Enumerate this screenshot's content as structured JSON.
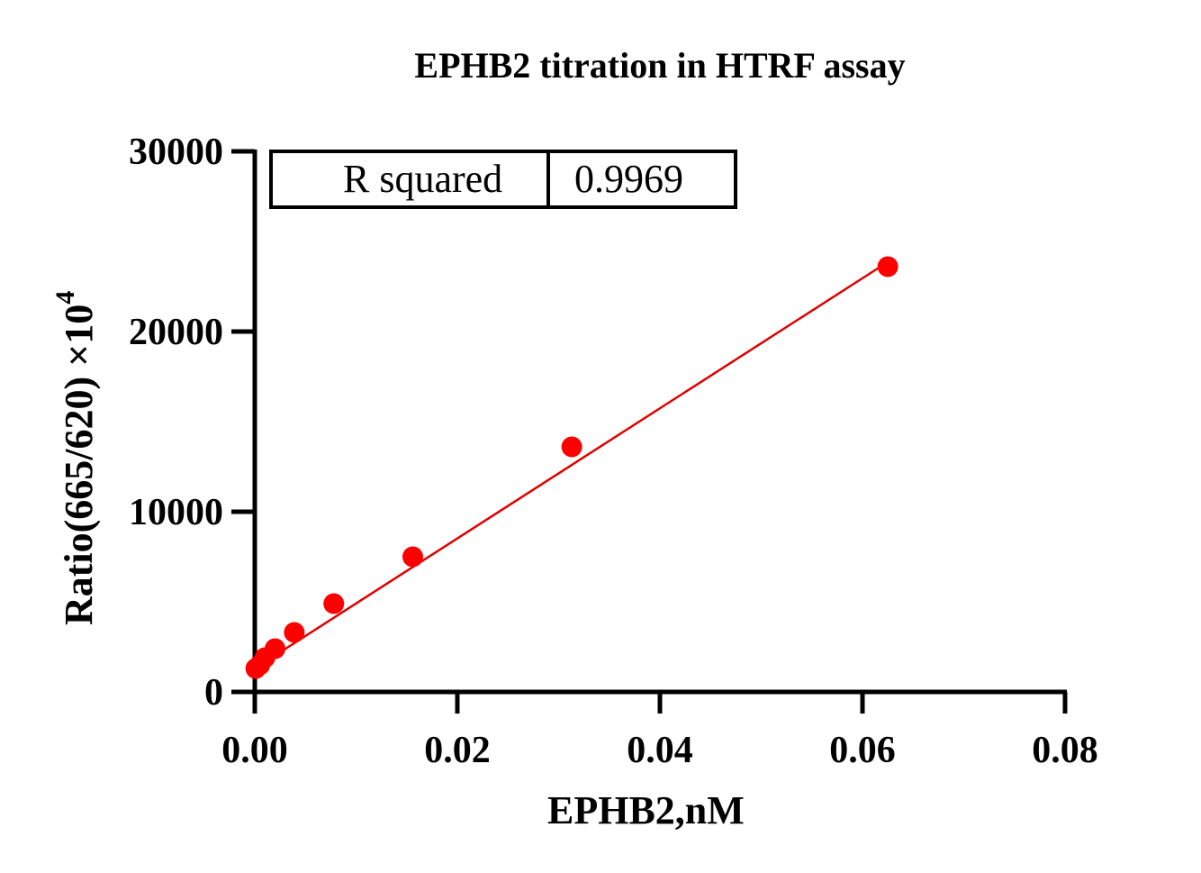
{
  "chart_data": {
    "type": "scatter",
    "title": "EPHB2 titration in HTRF assay",
    "xlabel": "EPHB2,nM",
    "ylabel": "Ratio(665/620) ×10",
    "ylabel_superscript": "4",
    "xlim": [
      0,
      0.08
    ],
    "ylim": [
      0,
      30000
    ],
    "x_ticks": [
      "0.00",
      "0.02",
      "0.04",
      "0.06",
      "0.08"
    ],
    "y_ticks": [
      "0",
      "10000",
      "20000",
      "30000"
    ],
    "grid": false,
    "marker_color": "#ff0000",
    "fit_line_color": "#e00000",
    "series": [
      {
        "x": [
          0.0001,
          0.0005,
          0.001,
          0.002,
          0.0039,
          0.0078,
          0.0156,
          0.0313,
          0.0625
        ],
        "y": [
          1300,
          1500,
          1900,
          2400,
          3300,
          4900,
          7500,
          13600,
          23600
        ]
      }
    ],
    "fit_line": {
      "slope": 361000,
      "intercept": 1300,
      "x_range": [
        0,
        0.0625
      ]
    },
    "legend_table": {
      "label": "R squared",
      "value": "0.9969",
      "placement": "top-left"
    }
  }
}
